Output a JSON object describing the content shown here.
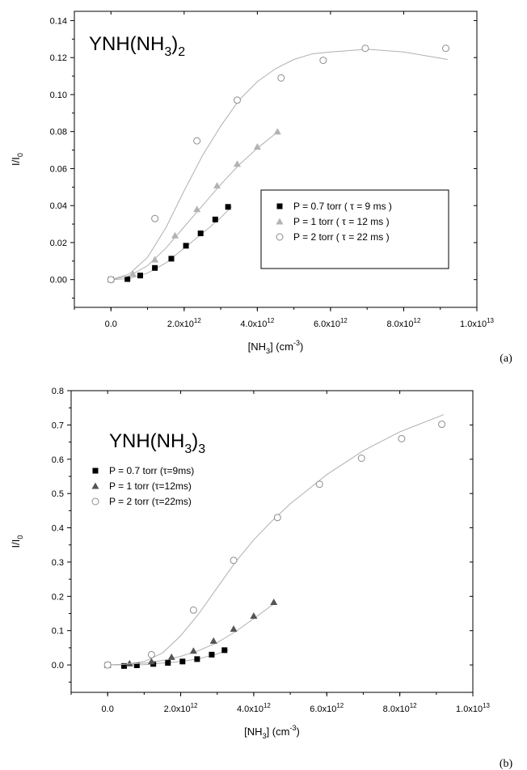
{
  "chart_data": [
    {
      "type": "scatter",
      "panel_label": "(a)",
      "title": "YNH(NH",
      "title_sub1": "3",
      "title_close": ")",
      "title_sub2": "2",
      "xlabel": "[NH",
      "xlabel_sub": "3",
      "xlabel_unit": "]  (cm",
      "xlabel_sup": "-3",
      "xlabel_close": ")",
      "ylabel": "I/I",
      "ylabel_sub": "0",
      "xlim": [
        -1000000000000.0,
        10000000000000.0
      ],
      "ylim": [
        -0.015,
        0.145
      ],
      "xticks": [
        {
          "value": 0,
          "base": "0.0",
          "exp": ""
        },
        {
          "value": 2000000000000.0,
          "base": "2.0x10",
          "exp": "12"
        },
        {
          "value": 4000000000000.0,
          "base": "4.0x10",
          "exp": "12"
        },
        {
          "value": 6000000000000.0,
          "base": "6.0x10",
          "exp": "12"
        },
        {
          "value": 8000000000000.0,
          "base": "8.0x10",
          "exp": "12"
        },
        {
          "value": 10000000000000.0,
          "base": "1.0x10",
          "exp": "13"
        }
      ],
      "yticks": [
        {
          "value": 0,
          "label": "0.00"
        },
        {
          "value": 0.02,
          "label": "0.02"
        },
        {
          "value": 0.04,
          "label": "0.04"
        },
        {
          "value": 0.06,
          "label": "0.06"
        },
        {
          "value": 0.08,
          "label": "0.08"
        },
        {
          "value": 0.1,
          "label": "0.10"
        },
        {
          "value": 0.12,
          "label": "0.12"
        },
        {
          "value": 0.14,
          "label": "0.14"
        }
      ],
      "series": [
        {
          "name": "P = 0.7 torr ( τ = 9 ms )",
          "marker": "square",
          "color": "#000000",
          "x": [
            0,
            450000000000.0,
            800000000000.0,
            1200000000000.0,
            1650000000000.0,
            2050000000000.0,
            2450000000000.0,
            2850000000000.0,
            3200000000000.0
          ],
          "y": [
            0,
            0.0003,
            0.0022,
            0.0063,
            0.0113,
            0.0183,
            0.025,
            0.0325,
            0.0393
          ],
          "fit_x": [
            0,
            500000000000.0,
            1000000000000.0,
            1500000000000.0,
            2000000000000.0,
            2500000000000.0,
            3000000000000.0,
            3300000000000.0
          ],
          "fit_y": [
            0,
            0.0005,
            0.0035,
            0.009,
            0.017,
            0.025,
            0.0335,
            0.0395
          ]
        },
        {
          "name": "P = 1 torr ( τ = 12 ms )",
          "marker": "triangle",
          "color": "#b3b3b3",
          "x": [
            0,
            600000000000.0,
            1200000000000.0,
            1750000000000.0,
            2350000000000.0,
            2900000000000.0,
            3450000000000.0,
            4000000000000.0,
            4550000000000.0
          ],
          "y": [
            0,
            0.0031,
            0.0108,
            0.0238,
            0.038,
            0.0508,
            0.0625,
            0.0718,
            0.08
          ],
          "fit_x": [
            0,
            500000000000.0,
            1000000000000.0,
            1500000000000.0,
            2000000000000.0,
            2500000000000.0,
            3000000000000.0,
            3500000000000.0,
            4000000000000.0,
            4600000000000.0
          ],
          "fit_y": [
            0,
            0.002,
            0.0075,
            0.017,
            0.0285,
            0.04,
            0.0515,
            0.062,
            0.071,
            0.0805
          ]
        },
        {
          "name": "P = 2 torr ( τ = 22 ms )",
          "marker": "circle",
          "color": "#8c8c8c",
          "x": [
            0,
            1200000000000.0,
            2350000000000.0,
            3450000000000.0,
            4650000000000.0,
            5800000000000.0,
            6950000000000.0,
            9150000000000.0
          ],
          "y": [
            0,
            0.033,
            0.075,
            0.097,
            0.109,
            0.1185,
            0.125,
            0.125
          ],
          "fit_x": [
            0,
            500000000000.0,
            1000000000000.0,
            1500000000000.0,
            2000000000000.0,
            2500000000000.0,
            3000000000000.0,
            3500000000000.0,
            4000000000000.0,
            4500000000000.0,
            5000000000000.0,
            5500000000000.0,
            6000000000000.0,
            7000000000000.0,
            8000000000000.0,
            9200000000000.0
          ],
          "fit_y": [
            0,
            0.003,
            0.012,
            0.028,
            0.048,
            0.067,
            0.083,
            0.097,
            0.107,
            0.114,
            0.119,
            0.122,
            0.123,
            0.1245,
            0.123,
            0.119
          ]
        }
      ]
    },
    {
      "type": "scatter",
      "panel_label": "(b)",
      "title": "YNH(NH",
      "title_sub1": "3",
      "title_close": ")",
      "title_sub2": "3",
      "xlabel": "[NH",
      "xlabel_sub": "3",
      "xlabel_unit": "]  (cm",
      "xlabel_sup": "-3",
      "xlabel_close": ")",
      "ylabel": "I/I",
      "ylabel_sub": "0",
      "xlim": [
        -1000000000000.0,
        10000000000000.0
      ],
      "ylim": [
        -0.08,
        0.8
      ],
      "xticks": [
        {
          "value": 0,
          "base": "0.0",
          "exp": ""
        },
        {
          "value": 2000000000000.0,
          "base": "2.0x10",
          "exp": "12"
        },
        {
          "value": 4000000000000.0,
          "base": "4.0x10",
          "exp": "12"
        },
        {
          "value": 6000000000000.0,
          "base": "6.0x10",
          "exp": "12"
        },
        {
          "value": 8000000000000.0,
          "base": "8.0x10",
          "exp": "12"
        },
        {
          "value": 10000000000000.0,
          "base": "1.0x10",
          "exp": "13"
        }
      ],
      "yticks": [
        {
          "value": 0,
          "label": "0.0"
        },
        {
          "value": 0.1,
          "label": "0.1"
        },
        {
          "value": 0.2,
          "label": "0.2"
        },
        {
          "value": 0.3,
          "label": "0.3"
        },
        {
          "value": 0.4,
          "label": "0.4"
        },
        {
          "value": 0.5,
          "label": "0.5"
        },
        {
          "value": 0.6,
          "label": "0.6"
        },
        {
          "value": 0.7,
          "label": "0.7"
        },
        {
          "value": 0.8,
          "label": "0.8"
        }
      ],
      "series": [
        {
          "name": "P = 0.7 torr (τ=9ms)",
          "marker": "square",
          "color": "#000000",
          "x": [
            0,
            450000000000.0,
            800000000000.0,
            1250000000000.0,
            1650000000000.0,
            2050000000000.0,
            2450000000000.0,
            2850000000000.0,
            3200000000000.0
          ],
          "y": [
            0,
            -0.003,
            -0.001,
            0.003,
            0.006,
            0.01,
            0.017,
            0.03,
            0.043
          ],
          "fit_x": [
            0,
            1000000000000.0,
            2000000000000.0,
            2500000000000.0,
            3000000000000.0,
            3300000000000.0
          ],
          "fit_y": [
            0,
            0.001,
            0.01,
            0.018,
            0.032,
            0.044
          ]
        },
        {
          "name": "P = 1 torr (τ=12ms)",
          "marker": "triangle",
          "color": "#555555",
          "x": [
            0,
            600000000000.0,
            1200000000000.0,
            1750000000000.0,
            2350000000000.0,
            2900000000000.0,
            3450000000000.0,
            4000000000000.0,
            4550000000000.0
          ],
          "y": [
            0,
            0.004,
            0.01,
            0.023,
            0.041,
            0.07,
            0.105,
            0.143,
            0.183
          ],
          "fit_x": [
            0,
            1000000000000.0,
            1500000000000.0,
            2000000000000.0,
            2500000000000.0,
            3000000000000.0,
            3500000000000.0,
            4000000000000.0,
            4600000000000.0
          ],
          "fit_y": [
            0,
            0.005,
            0.013,
            0.025,
            0.042,
            0.065,
            0.097,
            0.135,
            0.182
          ]
        },
        {
          "name": "P = 2 torr (τ=22ms)",
          "marker": "circle",
          "color": "#8c8c8c",
          "x": [
            0,
            1200000000000.0,
            2350000000000.0,
            3450000000000.0,
            4650000000000.0,
            5800000000000.0,
            6950000000000.0,
            8050000000000.0,
            9150000000000.0
          ],
          "y": [
            0,
            0.03,
            0.16,
            0.305,
            0.43,
            0.527,
            0.603,
            0.66,
            0.702
          ],
          "fit_x": [
            0,
            500000000000.0,
            1000000000000.0,
            1500000000000.0,
            2000000000000.0,
            2500000000000.0,
            3000000000000.0,
            3500000000000.0,
            4000000000000.0,
            4500000000000.0,
            5000000000000.0,
            6000000000000.0,
            7000000000000.0,
            8000000000000.0,
            9200000000000.0
          ],
          "fit_y": [
            0,
            0.002,
            0.01,
            0.035,
            0.085,
            0.15,
            0.225,
            0.3,
            0.365,
            0.42,
            0.47,
            0.555,
            0.625,
            0.68,
            0.73
          ]
        }
      ]
    }
  ]
}
